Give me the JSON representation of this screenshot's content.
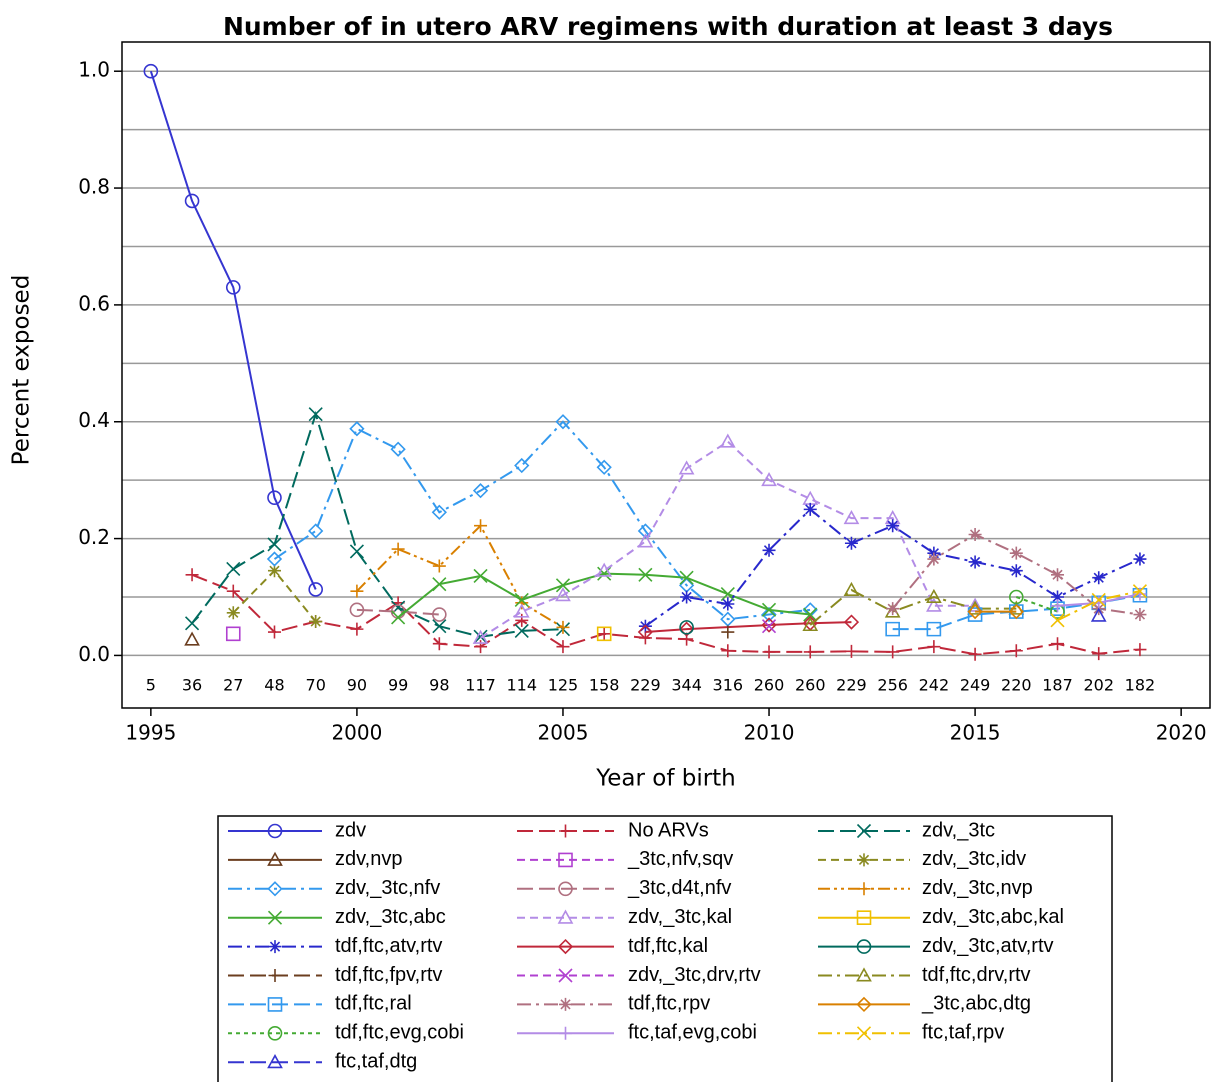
{
  "chart_data": {
    "type": "line",
    "title": "Number of in utero ARV regimens with duration at least 3 days",
    "x_label": "Year of birth",
    "y_label": "Percent exposed",
    "xlim": [
      1994.3,
      2020.7
    ],
    "xticks": [
      1995,
      2000,
      2005,
      2010,
      2015,
      2020
    ],
    "ylim": [
      -0.09,
      1.05
    ],
    "yticks": [
      {
        "value": 0,
        "label": "0.0"
      },
      0.2,
      0.4,
      0.6,
      0.8,
      {
        "value": 1,
        "label": "1.0"
      }
    ],
    "grid": true,
    "grid_lines": [
      0,
      0.1,
      0.2,
      0.3,
      0.4,
      0.5,
      0.6,
      0.7,
      0.8,
      0.9,
      1.0
    ],
    "counts": {
      "x": [
        1995,
        1996,
        1997,
        1998,
        1999,
        2000,
        2001,
        2002,
        2003,
        2004,
        2005,
        2006,
        2007,
        2008,
        2009,
        2010,
        2011,
        2012,
        2013,
        2014,
        2015,
        2016,
        2017,
        2018,
        2019
      ],
      "values": [
        5,
        36,
        27,
        48,
        70,
        90,
        99,
        98,
        117,
        114,
        125,
        158,
        229,
        344,
        316,
        260,
        260,
        229,
        256,
        242,
        249,
        220,
        187,
        202,
        182
      ]
    },
    "legend": "bottom",
    "series": [
      {
        "name": "zdv",
        "color": "#3535d0",
        "marker": "circle",
        "dash": "solid",
        "x": [
          1995,
          1996,
          1997,
          1998,
          1999
        ],
        "values": [
          1.0,
          0.778,
          0.63,
          0.27,
          0.113
        ]
      },
      {
        "name": "No ARVs",
        "color": "#c0283a",
        "marker": "plus",
        "dash": "longdash",
        "x": [
          1996,
          1997,
          1998,
          1999,
          2000,
          2001,
          2002,
          2003,
          2004,
          2005,
          2006,
          2007,
          2008,
          2009,
          2010,
          2011,
          2012,
          2013,
          2014,
          2015,
          2016,
          2017,
          2018,
          2019
        ],
        "values": [
          0.138,
          0.11,
          0.04,
          0.058,
          0.045,
          0.09,
          0.02,
          0.015,
          0.06,
          0.015,
          0.037,
          0.03,
          0.028,
          0.008,
          0.006,
          0.006,
          0.007,
          0.006,
          0.015,
          0.002,
          0.008,
          0.02,
          0.003,
          0.01
        ]
      },
      {
        "name": "zdv,_3tc",
        "color": "#006a5e",
        "marker": "x",
        "dash": "longdash",
        "x": [
          1996,
          1997,
          1998,
          1999,
          2000,
          2001,
          2002,
          2003,
          2004,
          2005
        ],
        "values": [
          0.055,
          0.148,
          0.19,
          0.413,
          0.178,
          0.082,
          0.05,
          0.032,
          0.042,
          0.045
        ]
      },
      {
        "name": "zdv,nvp",
        "color": "#6b3e1f",
        "marker": "triangle",
        "dash": "solid",
        "x": [
          1996
        ],
        "values": [
          0.027
        ]
      },
      {
        "name": "_3tc,nfv,sqv",
        "color": "#b040d0",
        "marker": "square",
        "dash": "dash",
        "x": [
          1997
        ],
        "values": [
          0.037
        ]
      },
      {
        "name": "zdv,_3tc,idv",
        "color": "#8a8a20",
        "marker": "star",
        "dash": "dash",
        "x": [
          1997,
          1998,
          1999
        ],
        "values": [
          0.073,
          0.145,
          0.058
        ]
      },
      {
        "name": "zdv,_3tc,nfv",
        "color": "#3399ee",
        "marker": "diamond",
        "dash": "dashdot",
        "x": [
          1998,
          1999,
          2000,
          2001,
          2002,
          2003,
          2004,
          2005,
          2006,
          2007,
          2008,
          2009,
          2010,
          2011
        ],
        "values": [
          0.165,
          0.213,
          0.388,
          0.353,
          0.245,
          0.282,
          0.325,
          0.4,
          0.322,
          0.213,
          0.12,
          0.062,
          0.07,
          0.078
        ]
      },
      {
        "name": "_3tc,d4t,nfv",
        "color": "#b07080",
        "marker": "circle",
        "dash": "longdash",
        "x": [
          2000,
          2001,
          2002
        ],
        "values": [
          0.078,
          0.075,
          0.07
        ]
      },
      {
        "name": "zdv,_3tc,nvp",
        "color": "#d98000",
        "marker": "plus",
        "dash": "dashdotdot",
        "x": [
          2000,
          2001,
          2002,
          2003,
          2004,
          2005
        ],
        "values": [
          0.11,
          0.182,
          0.153,
          0.222,
          0.09,
          0.048
        ]
      },
      {
        "name": "zdv,_3tc,abc",
        "color": "#44aa33",
        "marker": "x",
        "dash": "solid",
        "x": [
          2001,
          2002,
          2003,
          2004,
          2005,
          2006,
          2007,
          2008,
          2009,
          2010,
          2011
        ],
        "values": [
          0.065,
          0.122,
          0.136,
          0.095,
          0.12,
          0.14,
          0.138,
          0.133,
          0.105,
          0.078,
          0.07
        ]
      },
      {
        "name": "zdv,_3tc,kal",
        "color": "#b38ce6",
        "marker": "triangle",
        "dash": "dash",
        "x": [
          2003,
          2004,
          2005,
          2006,
          2007,
          2008,
          2009,
          2010,
          2011,
          2012,
          2013,
          2014,
          2015
        ],
        "values": [
          0.03,
          0.075,
          0.103,
          0.145,
          0.195,
          0.32,
          0.366,
          0.3,
          0.268,
          0.235,
          0.235,
          0.085,
          0.085
        ]
      },
      {
        "name": "zdv,_3tc,abc,kal",
        "color": "#f0c000",
        "marker": "square",
        "dash": "solid",
        "x": [
          2006
        ],
        "values": [
          0.037
        ]
      },
      {
        "name": "tdf,ftc,atv,rtv",
        "color": "#2828cc",
        "marker": "star",
        "dash": "dashdot",
        "x": [
          2007,
          2008,
          2009,
          2010,
          2011,
          2012,
          2013,
          2014,
          2015,
          2016,
          2017,
          2018,
          2019
        ],
        "values": [
          0.05,
          0.1,
          0.088,
          0.18,
          0.25,
          0.192,
          0.222,
          0.175,
          0.16,
          0.145,
          0.1,
          0.133,
          0.165
        ]
      },
      {
        "name": "tdf,ftc,kal",
        "color": "#c0283a",
        "marker": "diamond",
        "dash": "solid",
        "x": [
          2007,
          2008,
          2010,
          2011,
          2012
        ],
        "values": [
          0.04,
          0.045,
          0.052,
          0.055,
          0.057
        ]
      },
      {
        "name": "zdv,_3tc,atv,rtv",
        "color": "#006a5e",
        "marker": "circle",
        "dash": "solid",
        "x": [
          2008
        ],
        "values": [
          0.048
        ]
      },
      {
        "name": "tdf,ftc,fpv,rtv",
        "color": "#6b3e1f",
        "marker": "plus",
        "dash": "longdash",
        "x": [
          2009
        ],
        "values": [
          0.04
        ]
      },
      {
        "name": "zdv,_3tc,drv,rtv",
        "color": "#b040d0",
        "marker": "x",
        "dash": "dash",
        "x": [
          2010
        ],
        "values": [
          0.05
        ]
      },
      {
        "name": "tdf,ftc,drv,rtv",
        "color": "#8a8a20",
        "marker": "triangle",
        "dash": "dashdot",
        "x": [
          2011,
          2012,
          2013,
          2014,
          2015,
          2016
        ],
        "values": [
          0.052,
          0.112,
          0.075,
          0.1,
          0.08,
          0.08
        ]
      },
      {
        "name": "tdf,ftc,ral",
        "color": "#3399ee",
        "marker": "square",
        "dash": "longdash",
        "x": [
          2013,
          2014,
          2015,
          2016,
          2017,
          2018,
          2019
        ],
        "values": [
          0.045,
          0.045,
          0.07,
          0.075,
          0.08,
          0.09,
          0.103
        ]
      },
      {
        "name": "tdf,ftc,rpv",
        "color": "#b07080",
        "marker": "star",
        "dash": "dashdot",
        "x": [
          2013,
          2014,
          2015,
          2016,
          2017,
          2018,
          2019
        ],
        "values": [
          0.08,
          0.165,
          0.207,
          0.175,
          0.138,
          0.08,
          0.07
        ]
      },
      {
        "name": "_3tc,abc,dtg",
        "color": "#d98000",
        "marker": "diamond",
        "dash": "solid",
        "x": [
          2015,
          2016
        ],
        "values": [
          0.075,
          0.075
        ]
      },
      {
        "name": "tdf,ftc,evg,cobi",
        "color": "#44aa33",
        "marker": "circle",
        "dash": "dot",
        "x": [
          2016,
          2017
        ],
        "values": [
          0.1,
          0.075
        ]
      },
      {
        "name": "ftc,taf,evg,cobi",
        "color": "#b38ce6",
        "marker": "plus",
        "dash": "solid",
        "x": [
          2017,
          2018,
          2019
        ],
        "values": [
          0.085,
          0.09,
          0.105
        ]
      },
      {
        "name": "ftc,taf,rpv",
        "color": "#f0c000",
        "marker": "x",
        "dash": "dashdot",
        "x": [
          2017,
          2018,
          2019
        ],
        "values": [
          0.06,
          0.095,
          0.11
        ]
      },
      {
        "name": "ftc,taf,dtg",
        "color": "#3535d0",
        "marker": "triangle",
        "dash": "longdash",
        "x": [
          2018
        ],
        "values": [
          0.068
        ]
      }
    ]
  }
}
